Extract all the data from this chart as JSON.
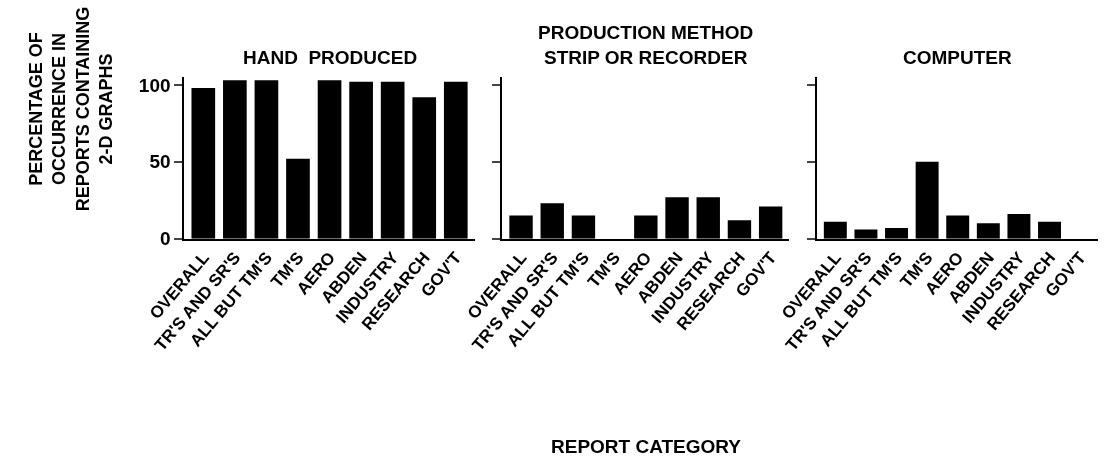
{
  "chart_data": [
    {
      "type": "bar",
      "title": "HAND  PRODUCED",
      "ylabel": "PERCENTAGE OF\nOCCURRENCE IN\nREPORTS CONTAINING\n2-D GRAPHS",
      "categories": [
        "OVERALL",
        "TR'S AND SR'S",
        "ALL BUT TM'S",
        "TM'S",
        "AERO",
        "ABDEN",
        "INDUSTRY",
        "RESEARCH",
        "GOV'T"
      ],
      "values": [
        98,
        103,
        103,
        52,
        103,
        102,
        102,
        92,
        102
      ],
      "color": "#000000",
      "ylim": [
        0,
        105
      ],
      "yticks": [
        0,
        50,
        100
      ]
    },
    {
      "type": "bar",
      "title": "PRODUCTION METHOD\nSTRIP OR RECORDER",
      "xlabel": "REPORT CATEGORY",
      "categories": [
        "OVERALL",
        "TR'S AND SR'S",
        "ALL BUT TM'S",
        "TM'S",
        "AERO",
        "ABDEN",
        "INDUSTRY",
        "RESEARCH",
        "GOV'T"
      ],
      "values": [
        15,
        23,
        15,
        0,
        15,
        27,
        27,
        12,
        21
      ],
      "color": "#000000",
      "ylim": [
        0,
        105
      ],
      "yticks": [
        0,
        50,
        100
      ],
      "tick_labels": "x"
    },
    {
      "type": "bar",
      "title": "COMPUTER",
      "categories": [
        "OVERALL",
        "TR'S AND SR'S",
        "ALL BUT TM'S",
        "TM'S",
        "AERO",
        "ABDEN",
        "INDUSTRY",
        "RESEARCH",
        "GOV'T"
      ],
      "values": [
        11,
        6,
        7,
        50,
        15,
        10,
        16,
        11,
        0
      ],
      "color": "#000000",
      "ylim": [
        0,
        105
      ],
      "yticks": [
        0,
        50,
        100
      ],
      "tick_labels": "x"
    }
  ]
}
